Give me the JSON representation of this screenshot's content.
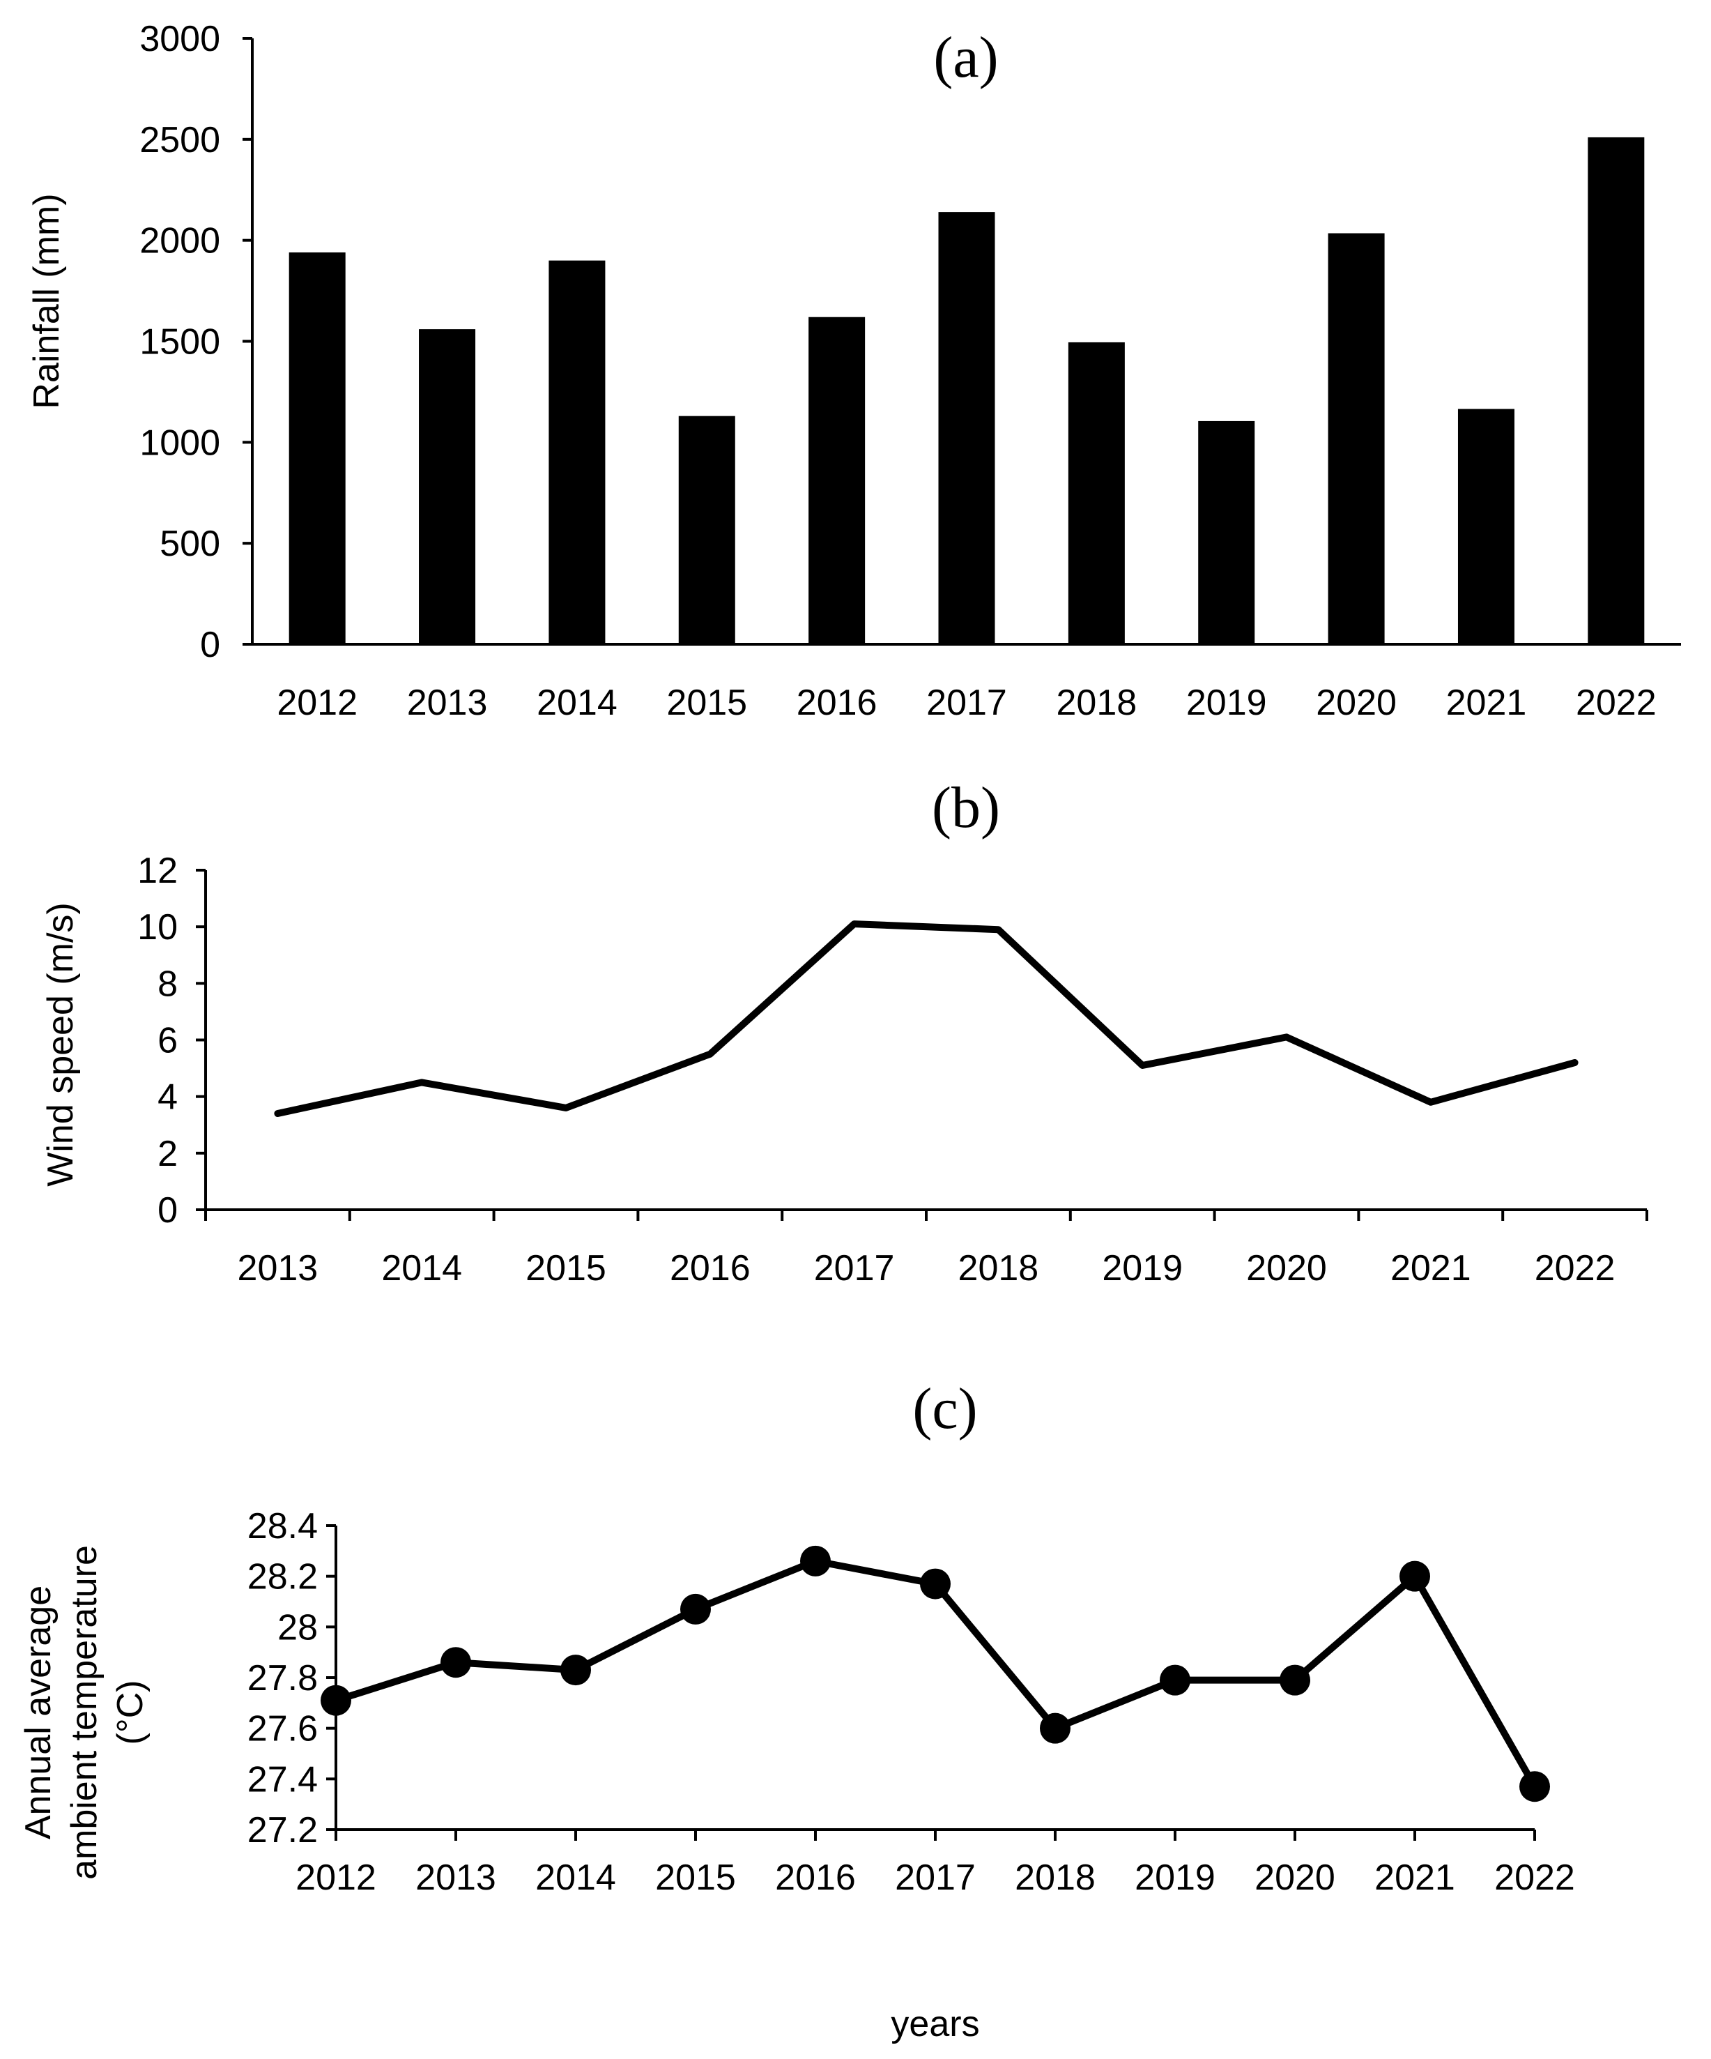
{
  "chart_data": [
    {
      "panel_label": "(a)",
      "type": "bar",
      "title": "(a)",
      "ylabel": "Rainfall (mm)",
      "xlabel": "",
      "categories": [
        "2012",
        "2013",
        "2014",
        "2015",
        "2016",
        "2017",
        "2018",
        "2019",
        "2020",
        "2021",
        "2022"
      ],
      "values": [
        1940,
        1560,
        1900,
        1130,
        1620,
        2140,
        1495,
        1105,
        2035,
        1165,
        2510
      ],
      "ylim": [
        0,
        3000
      ],
      "yticks": [
        "0",
        "500",
        "1000",
        "1500",
        "2000",
        "2500",
        "3000"
      ],
      "grid": false,
      "color": "#000000"
    },
    {
      "panel_label": "(b)",
      "type": "line",
      "title": "(b)",
      "ylabel": "Wind speed (m/s)",
      "xlabel": "",
      "categories": [
        "2013",
        "2014",
        "2015",
        "2016",
        "2017",
        "2018",
        "2019",
        "2020",
        "2021",
        "2022"
      ],
      "values": [
        3.4,
        4.5,
        3.6,
        5.5,
        10.1,
        9.9,
        5.1,
        6.1,
        3.8,
        5.2
      ],
      "ylim": [
        0,
        12
      ],
      "yticks": [
        "0",
        "2",
        "4",
        "6",
        "8",
        "10",
        "12"
      ],
      "grid": false,
      "markers": false,
      "color": "#000000"
    },
    {
      "panel_label": "(c)",
      "type": "line",
      "title": "(c)",
      "ylabel": [
        "Annual average",
        "ambient temperature",
        "(°C)"
      ],
      "xlabel": "years",
      "categories": [
        "2012",
        "2013",
        "2014",
        "2015",
        "2016",
        "2017",
        "2018",
        "2019",
        "2020",
        "2021",
        "2022"
      ],
      "values": [
        27.71,
        27.86,
        27.83,
        28.07,
        28.26,
        28.17,
        27.6,
        27.79,
        27.79,
        28.2,
        27.37
      ],
      "ylim": [
        27.2,
        28.4
      ],
      "yticks": [
        "27.2",
        "27.4",
        "27.6",
        "27.8",
        "28",
        "28.2",
        "28.4"
      ],
      "grid": false,
      "markers": true,
      "color": "#000000"
    }
  ]
}
